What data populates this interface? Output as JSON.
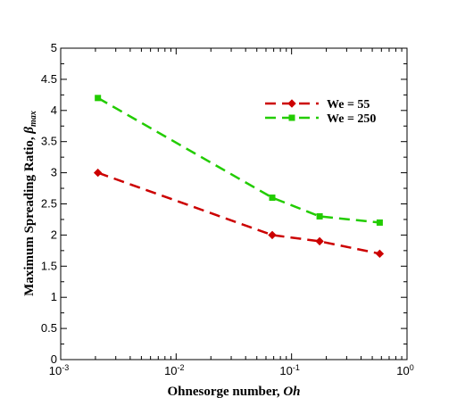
{
  "chart_data": {
    "type": "line",
    "xscale": "log",
    "xlim": [
      0.001,
      1
    ],
    "ylim": [
      0,
      5
    ],
    "x_ticks": [
      {
        "base": "10",
        "exp": "-3"
      },
      {
        "base": "10",
        "exp": "-2"
      },
      {
        "base": "10",
        "exp": "-1"
      },
      {
        "base": "10",
        "exp": "0"
      }
    ],
    "y_ticks": [
      "0",
      "0.5",
      "1",
      "1.5",
      "2",
      "2.5",
      "3",
      "3.5",
      "4",
      "4.5",
      "5"
    ],
    "xlabel": {
      "main": "Ohnesorge number, ",
      "italic": "Oh"
    },
    "ylabel": {
      "main": "Maximum Spreading Ratio, ",
      "symbol": "β",
      "sub": "max"
    },
    "grid": false,
    "legend_position": "top-right",
    "series": [
      {
        "name": "We = 55",
        "color": "#cc0000",
        "marker": "diamond",
        "x": [
          0.0021,
          0.068,
          0.175,
          0.58
        ],
        "y": [
          3.0,
          2.0,
          1.9,
          1.7
        ]
      },
      {
        "name": "We = 250",
        "color": "#22cc00",
        "marker": "square",
        "x": [
          0.0021,
          0.068,
          0.175,
          0.58
        ],
        "y": [
          4.2,
          2.6,
          2.3,
          2.2
        ]
      }
    ]
  }
}
